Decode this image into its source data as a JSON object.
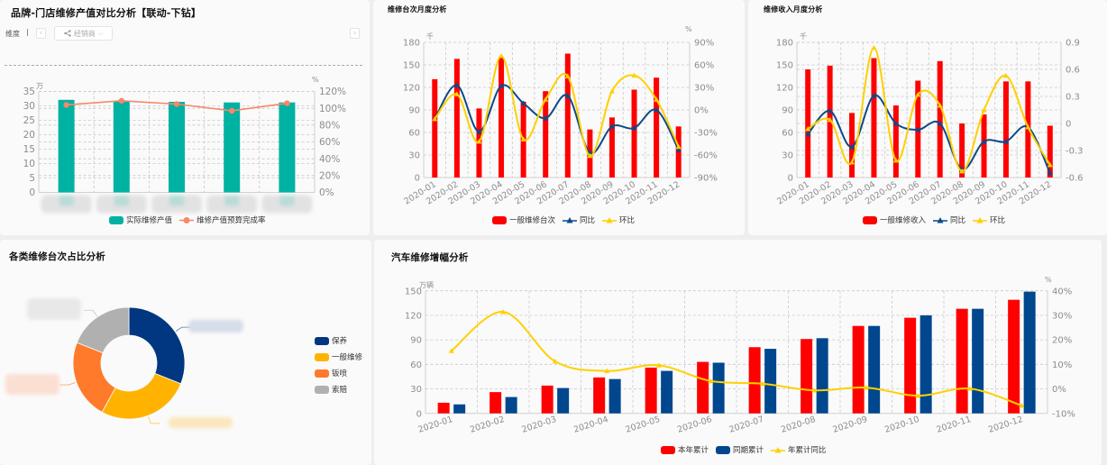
{
  "panels": {
    "brand_store": {
      "title": "品牌-门店维修产值对比分析【联动-下钻】",
      "toolbar": {
        "dimension_label": "维度",
        "separator": "|",
        "prev_icon": "‹",
        "next_icon": "›",
        "dropdown_value": "经销商",
        "dropdown_chevron": "⌵"
      }
    },
    "repair_count": {
      "title": "维修台次月度分析"
    },
    "repair_revenue": {
      "title": "维修收入月度分析"
    },
    "category_share": {
      "title": "各类维修台次占比分析"
    },
    "growth": {
      "title": "汽车维修增幅分析"
    }
  },
  "chart_data": [
    {
      "type": "bar",
      "title": "品牌-门店维修产值对比分析【联动-下钻】",
      "categories": [
        "",
        "",
        "",
        "",
        ""
      ],
      "category_labels": "blurred",
      "y_unit": "万",
      "y2_unit": "%",
      "ylim": [
        0,
        35
      ],
      "yticks": [
        0,
        5,
        10,
        15,
        20,
        25,
        30,
        35
      ],
      "y2lim": [
        0,
        120
      ],
      "y2ticks": [
        0,
        20,
        40,
        60,
        80,
        100,
        120
      ],
      "y2tick_labels": [
        "0%",
        "20%",
        "40%",
        "60%",
        "80%",
        "100%",
        "120%"
      ],
      "grid": true,
      "legend_position": "bottom",
      "series": [
        {
          "name": "实际维修产值",
          "type": "bar",
          "axis": "left",
          "color": "#00b2a2",
          "values": [
            32.1,
            31.7,
            31.4,
            31.2,
            31.2
          ]
        },
        {
          "name": "维修产值预算完成率",
          "type": "line",
          "axis": "right",
          "color": "#f8876a",
          "values": [
            104,
            109,
            105,
            97,
            106
          ]
        }
      ]
    },
    {
      "type": "bar",
      "title": "维修台次月度分析",
      "categories": [
        "2020-01",
        "2020-02",
        "2020-03",
        "2020-04",
        "2020-05",
        "2020-06",
        "2020-07",
        "2020-08",
        "2020-09",
        "2020-10",
        "2020-11",
        "2020-12"
      ],
      "y_unit": "千",
      "y2_unit": "%",
      "ylim": [
        0,
        180
      ],
      "yticks": [
        0,
        30,
        60,
        90,
        120,
        150,
        180
      ],
      "y2lim": [
        -90,
        90
      ],
      "y2ticks": [
        -90,
        -60,
        -30,
        0,
        30,
        60,
        90
      ],
      "y2tick_labels": [
        "-90%",
        "-60%",
        "-30%",
        "0%",
        "30%",
        "60%",
        "90%"
      ],
      "grid": true,
      "legend_position": "bottom",
      "series": [
        {
          "name": "一般维修台次",
          "type": "bar",
          "axis": "left",
          "color": "#ff0000",
          "values": [
            131,
            158,
            92,
            160,
            101,
            115,
            165,
            64,
            80,
            117,
            133,
            68
          ]
        },
        {
          "name": "同比",
          "type": "line",
          "axis": "right",
          "color": "#0b4a8b",
          "values": [
            -12,
            33,
            -29,
            32,
            9,
            -11,
            19,
            -57,
            -22,
            -24,
            0,
            -53
          ]
        },
        {
          "name": "环比",
          "type": "line",
          "axis": "right",
          "color": "#ffd000",
          "values": [
            -12,
            21,
            -42,
            72,
            -39,
            14,
            45,
            -61,
            25,
            46,
            14,
            -49
          ]
        }
      ]
    },
    {
      "type": "bar",
      "title": "维修收入月度分析",
      "categories": [
        "2020-01",
        "2020-02",
        "2020-03",
        "2020-04",
        "2020-05",
        "2020-06",
        "2020-07",
        "2020-08",
        "2020-09",
        "2020-10",
        "2020-11",
        "2020-12"
      ],
      "y_unit": "千",
      "ylim": [
        0,
        180
      ],
      "yticks": [
        0,
        30,
        60,
        90,
        120,
        150,
        180
      ],
      "y2lim": [
        -0.6,
        0.9
      ],
      "y2ticks": [
        -0.6,
        -0.3,
        0,
        0.3,
        0.6,
        0.9
      ],
      "y2tick_labels": [
        "-0.6",
        "-0.3",
        "0",
        "0.3",
        "0.6",
        "0.9"
      ],
      "grid": true,
      "legend_position": "bottom",
      "series": [
        {
          "name": "一般维修收入",
          "type": "bar",
          "axis": "left",
          "color": "#ff0000",
          "values": [
            144,
            149,
            86,
            159,
            96,
            129,
            155,
            72,
            84,
            128,
            128,
            69
          ]
        },
        {
          "name": "同比",
          "type": "line",
          "axis": "right",
          "color": "#0b4a8b",
          "values": [
            -0.12,
            0.14,
            -0.26,
            0.31,
            0.0,
            -0.07,
            0.0,
            -0.51,
            -0.2,
            -0.2,
            -0.04,
            -0.55
          ]
        },
        {
          "name": "环比",
          "type": "line",
          "axis": "right",
          "color": "#ffd000",
          "values": [
            -0.06,
            0.04,
            -0.43,
            0.84,
            -0.41,
            0.32,
            0.2,
            -0.53,
            0.15,
            0.53,
            -0.04,
            -0.46
          ]
        }
      ]
    },
    {
      "type": "pie",
      "title": "各类维修台次占比分析",
      "categories": [
        "保养",
        "一般维修",
        "钣喷",
        "索赔"
      ],
      "values": [
        31,
        27,
        23,
        19
      ],
      "colors": [
        "#003780",
        "#ffb300",
        "#ff7a2a",
        "#b0b0b0"
      ],
      "donut": true,
      "slice_labels": "blurred",
      "legend_position": "right"
    },
    {
      "type": "bar",
      "title": "汽车维修增幅分析",
      "categories": [
        "2020-01",
        "2020-02",
        "2020-03",
        "2020-04",
        "2020-05",
        "2020-06",
        "2020-07",
        "2020-08",
        "2020-09",
        "2020-10",
        "2020-11",
        "2020-12"
      ],
      "y_unit": "万辆",
      "y2_unit": "%",
      "ylim": [
        0,
        150
      ],
      "yticks": [
        0,
        30,
        60,
        90,
        120,
        150
      ],
      "y2lim": [
        -10,
        40
      ],
      "y2ticks": [
        -10,
        0,
        10,
        20,
        30,
        40
      ],
      "y2tick_labels": [
        "-10%",
        "0%",
        "10%",
        "20%",
        "30%",
        "40%"
      ],
      "grid": true,
      "legend_position": "bottom",
      "series": [
        {
          "name": "本年累计",
          "type": "bar",
          "axis": "left",
          "color": "#ff0000",
          "values": [
            13,
            26,
            34,
            44,
            56,
            63,
            81,
            91,
            107,
            117,
            128,
            139
          ]
        },
        {
          "name": "同期累计",
          "type": "bar",
          "axis": "left",
          "color": "#00478e",
          "values": [
            11,
            20,
            31,
            42,
            52,
            62,
            79,
            92,
            107,
            120,
            128,
            149
          ]
        },
        {
          "name": "年累计同比",
          "type": "line",
          "axis": "right",
          "color": "#ffd000",
          "values": [
            15.5,
            31.4,
            11.2,
            7.3,
            9.6,
            3.2,
            2.1,
            -0.6,
            0.5,
            -2.8,
            0.1,
            -6.8
          ]
        }
      ]
    }
  ]
}
